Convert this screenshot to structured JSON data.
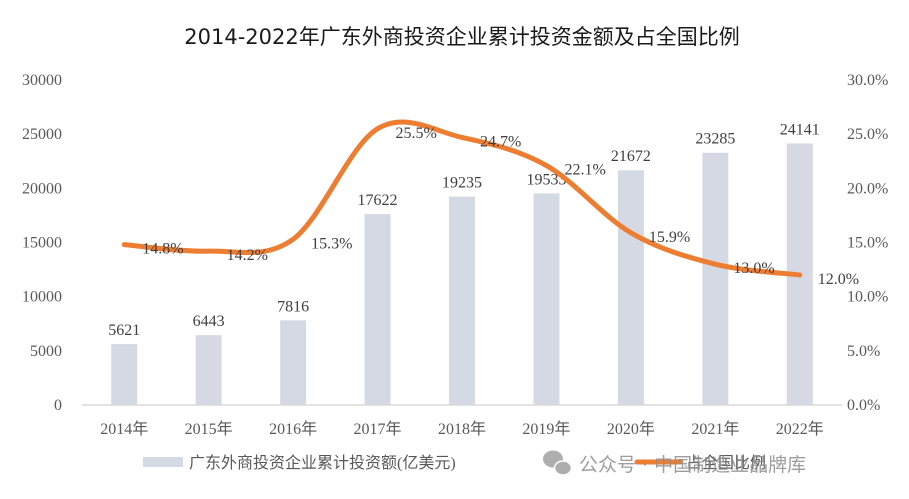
{
  "chart_data": {
    "type": "bar",
    "title": "2014-2022年广东外商投资企业累计投资金额及占全国比例",
    "categories": [
      "2014年",
      "2015年",
      "2016年",
      "2017年",
      "2018年",
      "2019年",
      "2020年",
      "2021年",
      "2022年"
    ],
    "series": [
      {
        "name": "广东外商投资企业累计投资额(亿美元)",
        "type": "bar",
        "axis": "left",
        "color": "#d5d9e3",
        "values": [
          5621,
          6443,
          7816,
          17622,
          19235,
          19533,
          21672,
          23285,
          24141
        ],
        "labels": [
          "5621",
          "6443",
          "7816",
          "17622",
          "19235",
          "19533",
          "21672",
          "23285",
          "24141"
        ]
      },
      {
        "name": "占全国比例",
        "type": "line",
        "smooth": true,
        "axis": "right",
        "color": "#ed7d31",
        "values": [
          14.8,
          14.2,
          15.3,
          25.5,
          24.7,
          22.1,
          15.9,
          13.0,
          12.0
        ],
        "labels": [
          "14.8%",
          "14.2%",
          "15.3%",
          "25.5%",
          "24.7%",
          "22.1%",
          "15.9%",
          "13.0%",
          "12.0%"
        ]
      }
    ],
    "y_left": {
      "ylim": [
        0,
        30000
      ],
      "ticks": [
        "0",
        "5000",
        "10000",
        "15000",
        "20000",
        "25000",
        "30000"
      ],
      "tick_values": [
        0,
        5000,
        10000,
        15000,
        20000,
        25000,
        30000
      ]
    },
    "y_right": {
      "ylim": [
        0,
        30
      ],
      "ticks": [
        "0.0%",
        "5.0%",
        "10.0%",
        "15.0%",
        "20.0%",
        "25.0%",
        "30.0%"
      ],
      "tick_values": [
        0,
        5,
        10,
        15,
        20,
        25,
        30
      ]
    },
    "xlabel": "",
    "ylabel": "",
    "grid": false,
    "legend": {
      "placement": "bottom",
      "entries": [
        "广东外商投资企业累计投资额(亿美元)",
        "占全国比例"
      ]
    }
  },
  "watermark": {
    "icon": "wechat-icon",
    "text": "公众号 · 中国制造业品牌库"
  }
}
